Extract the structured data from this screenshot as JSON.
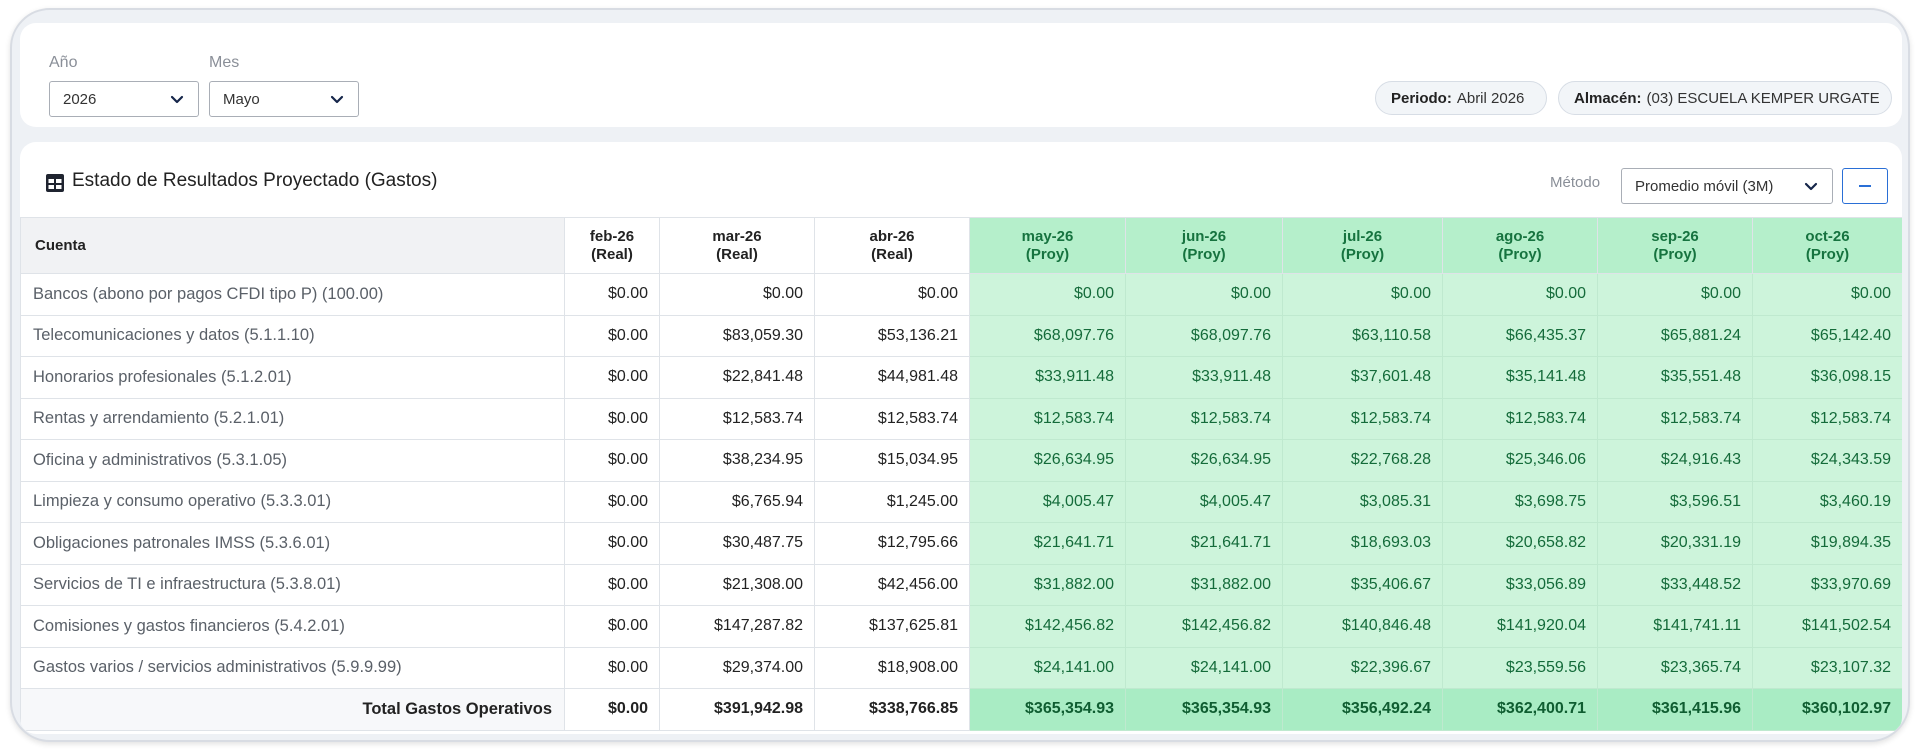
{
  "filters": {
    "year_label": "Año",
    "year_value": "2026",
    "month_label": "Mes",
    "month_value": "Mayo",
    "period_key": "Periodo:",
    "period_value": "Abril 2026",
    "warehouse_key": "Almacén:",
    "warehouse_value": "(03) ESCUELA KEMPER URGATE"
  },
  "card": {
    "title": "Estado de Resultados Proyectado (Gastos)",
    "method_label": "Método",
    "method_value": "Promedio móvil (3M)"
  },
  "table": {
    "account_header": "Cuenta",
    "columns": [
      {
        "month": "feb-26",
        "kind": "(Real)"
      },
      {
        "month": "mar-26",
        "kind": "(Real)"
      },
      {
        "month": "abr-26",
        "kind": "(Real)"
      },
      {
        "month": "may-26",
        "kind": "(Proy)"
      },
      {
        "month": "jun-26",
        "kind": "(Proy)"
      },
      {
        "month": "jul-26",
        "kind": "(Proy)"
      },
      {
        "month": "ago-26",
        "kind": "(Proy)"
      },
      {
        "month": "sep-26",
        "kind": "(Proy)"
      },
      {
        "month": "oct-26",
        "kind": "(Proy)"
      }
    ],
    "rows": [
      {
        "account": "Bancos (abono por pagos CFDI tipo P) (100.00)",
        "values": [
          "$0.00",
          "$0.00",
          "$0.00",
          "$0.00",
          "$0.00",
          "$0.00",
          "$0.00",
          "$0.00",
          "$0.00"
        ]
      },
      {
        "account": "Telecomunicaciones y datos (5.1.1.10)",
        "values": [
          "$0.00",
          "$83,059.30",
          "$53,136.21",
          "$68,097.76",
          "$68,097.76",
          "$63,110.58",
          "$66,435.37",
          "$65,881.24",
          "$65,142.40"
        ]
      },
      {
        "account": "Honorarios profesionales (5.1.2.01)",
        "values": [
          "$0.00",
          "$22,841.48",
          "$44,981.48",
          "$33,911.48",
          "$33,911.48",
          "$37,601.48",
          "$35,141.48",
          "$35,551.48",
          "$36,098.15"
        ]
      },
      {
        "account": "Rentas y arrendamiento (5.2.1.01)",
        "values": [
          "$0.00",
          "$12,583.74",
          "$12,583.74",
          "$12,583.74",
          "$12,583.74",
          "$12,583.74",
          "$12,583.74",
          "$12,583.74",
          "$12,583.74"
        ]
      },
      {
        "account": "Oficina y administrativos (5.3.1.05)",
        "values": [
          "$0.00",
          "$38,234.95",
          "$15,034.95",
          "$26,634.95",
          "$26,634.95",
          "$22,768.28",
          "$25,346.06",
          "$24,916.43",
          "$24,343.59"
        ]
      },
      {
        "account": "Limpieza y consumo operativo (5.3.3.01)",
        "values": [
          "$0.00",
          "$6,765.94",
          "$1,245.00",
          "$4,005.47",
          "$4,005.47",
          "$3,085.31",
          "$3,698.75",
          "$3,596.51",
          "$3,460.19"
        ]
      },
      {
        "account": "Obligaciones patronales IMSS (5.3.6.01)",
        "values": [
          "$0.00",
          "$30,487.75",
          "$12,795.66",
          "$21,641.71",
          "$21,641.71",
          "$18,693.03",
          "$20,658.82",
          "$20,331.19",
          "$19,894.35"
        ]
      },
      {
        "account": "Servicios de TI e infraestructura (5.3.8.01)",
        "values": [
          "$0.00",
          "$21,308.00",
          "$42,456.00",
          "$31,882.00",
          "$31,882.00",
          "$35,406.67",
          "$33,056.89",
          "$33,448.52",
          "$33,970.69"
        ]
      },
      {
        "account": "Comisiones y gastos financieros (5.4.2.01)",
        "values": [
          "$0.00",
          "$147,287.82",
          "$137,625.81",
          "$142,456.82",
          "$142,456.82",
          "$140,846.48",
          "$141,920.04",
          "$141,741.11",
          "$141,502.54"
        ]
      },
      {
        "account": "Gastos varios / servicios administrativos (5.9.9.99)",
        "values": [
          "$0.00",
          "$29,374.00",
          "$18,908.00",
          "$24,141.00",
          "$24,141.00",
          "$22,396.67",
          "$23,559.56",
          "$23,365.74",
          "$23,107.32"
        ]
      }
    ],
    "total": {
      "label": "Total Gastos Operativos",
      "values": [
        "$0.00",
        "$391,942.98",
        "$338,766.85",
        "$365,354.93",
        "$365,354.93",
        "$356,492.24",
        "$362,400.71",
        "$361,415.96",
        "$360,102.97"
      ]
    }
  },
  "colors": {
    "projected_bg": "#cdf4db",
    "projected_header_bg": "#b5efcb",
    "projected_text": "#146b3a",
    "accent": "#2a6fd6"
  }
}
